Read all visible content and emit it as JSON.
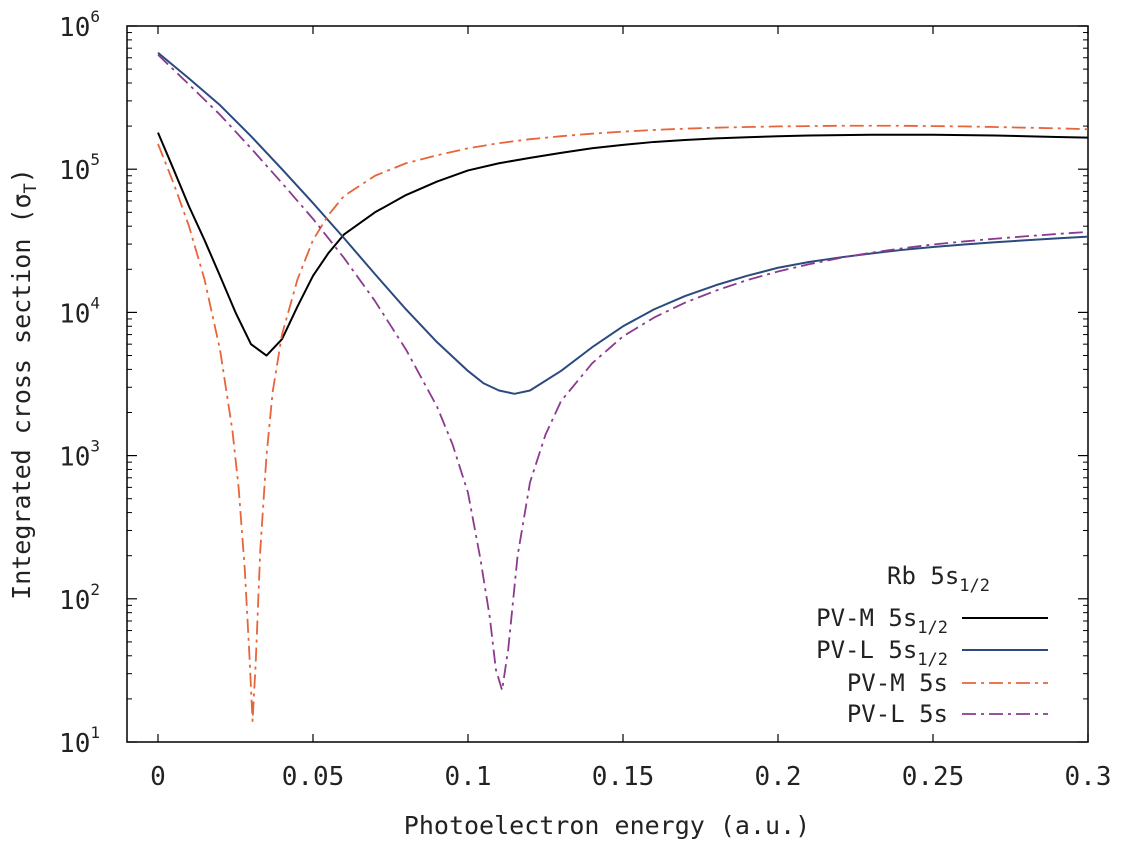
{
  "chart_data": {
    "type": "line",
    "xlabel": "Photoelectron energy (a.u.)",
    "ylabel": "Integrated cross section (σ",
    "ylabel_subscript": "T",
    "ylabel_close": ")",
    "xlim": [
      -0.01,
      0.3
    ],
    "ylim": [
      10,
      1000000
    ],
    "yscale": "log",
    "grid": false,
    "x_ticks": [
      {
        "value": 0,
        "label": "0"
      },
      {
        "value": 0.05,
        "label": "0.05"
      },
      {
        "value": 0.1,
        "label": "0.1"
      },
      {
        "value": 0.15,
        "label": "0.15"
      },
      {
        "value": 0.2,
        "label": "0.2"
      },
      {
        "value": 0.25,
        "label": "0.25"
      },
      {
        "value": 0.3,
        "label": "0.3"
      }
    ],
    "y_ticks": [
      {
        "value": 10,
        "base": "10",
        "exp": "1"
      },
      {
        "value": 100,
        "base": "10",
        "exp": "2"
      },
      {
        "value": 1000,
        "base": "10",
        "exp": "3"
      },
      {
        "value": 10000,
        "base": "10",
        "exp": "4"
      },
      {
        "value": 100000,
        "base": "10",
        "exp": "5"
      },
      {
        "value": 1000000,
        "base": "10",
        "exp": "6"
      }
    ],
    "legend": {
      "placement": "bottom-right",
      "title_main": "Rb 5s",
      "title_sub": "1/2"
    },
    "series": [
      {
        "label_main": "PV-M 5s",
        "label_sub": "1/2",
        "color": "#000000",
        "dash": "solid",
        "x": [
          0,
          0.005,
          0.01,
          0.015,
          0.02,
          0.025,
          0.03,
          0.035,
          0.04,
          0.045,
          0.05,
          0.055,
          0.06,
          0.07,
          0.08,
          0.09,
          0.1,
          0.11,
          0.12,
          0.13,
          0.14,
          0.15,
          0.16,
          0.17,
          0.18,
          0.19,
          0.2,
          0.21,
          0.22,
          0.23,
          0.24,
          0.25,
          0.26,
          0.27,
          0.28,
          0.29,
          0.3
        ],
        "y": [
          180000,
          100000,
          55000,
          32000,
          18000,
          10000,
          6000,
          5000,
          6500,
          11000,
          18000,
          26000,
          35000,
          50000,
          66000,
          82000,
          98000,
          110000,
          120000,
          130000,
          140000,
          148000,
          155000,
          160000,
          164000,
          167000,
          170000,
          172000,
          173000,
          174000,
          174000,
          174000,
          173000,
          172000,
          170000,
          168000,
          166000
        ]
      },
      {
        "label_main": "PV-L 5s",
        "label_sub": "1/2",
        "color": "#2b4a7e",
        "dash": "solid",
        "x": [
          0,
          0.01,
          0.02,
          0.03,
          0.04,
          0.05,
          0.06,
          0.07,
          0.08,
          0.09,
          0.1,
          0.105,
          0.11,
          0.115,
          0.12,
          0.13,
          0.14,
          0.15,
          0.16,
          0.17,
          0.18,
          0.19,
          0.2,
          0.21,
          0.22,
          0.23,
          0.24,
          0.25,
          0.26,
          0.27,
          0.28,
          0.29,
          0.3
        ],
        "y": [
          650000,
          430000,
          280000,
          170000,
          100000,
          58000,
          33000,
          18500,
          10500,
          6200,
          3900,
          3200,
          2850,
          2700,
          2850,
          3900,
          5700,
          8000,
          10500,
          13000,
          15500,
          18000,
          20500,
          22500,
          24200,
          25800,
          27300,
          28600,
          29800,
          30900,
          31900,
          32900,
          33800
        ]
      },
      {
        "label_main": "PV-M 5s",
        "label_sub": "",
        "color": "#e8643a",
        "dash": "dashdot",
        "x": [
          0,
          0.005,
          0.01,
          0.015,
          0.02,
          0.024,
          0.026,
          0.028,
          0.0295,
          0.0305,
          0.0315,
          0.033,
          0.035,
          0.037,
          0.04,
          0.045,
          0.05,
          0.055,
          0.06,
          0.07,
          0.08,
          0.09,
          0.1,
          0.11,
          0.12,
          0.13,
          0.14,
          0.15,
          0.16,
          0.17,
          0.18,
          0.19,
          0.2,
          0.21,
          0.22,
          0.23,
          0.24,
          0.25,
          0.26,
          0.27,
          0.28,
          0.29,
          0.3
        ],
        "y": [
          150000,
          80000,
          40000,
          17000,
          5500,
          1500,
          600,
          160,
          40,
          14,
          35,
          220,
          1000,
          2800,
          7000,
          17000,
          32000,
          48000,
          65000,
          90000,
          110000,
          125000,
          140000,
          152000,
          162000,
          170000,
          177000,
          183000,
          188000,
          192000,
          195000,
          197000,
          199000,
          200000,
          201000,
          201000,
          201000,
          200000,
          199000,
          197000,
          195000,
          193000,
          190000
        ]
      },
      {
        "label_main": "PV-L 5s",
        "label_sub": "",
        "color": "#8b3a8f",
        "dash": "dashdot",
        "x": [
          0,
          0.01,
          0.02,
          0.03,
          0.04,
          0.05,
          0.06,
          0.07,
          0.08,
          0.09,
          0.095,
          0.1,
          0.104,
          0.107,
          0.109,
          0.111,
          0.113,
          0.116,
          0.12,
          0.125,
          0.13,
          0.14,
          0.15,
          0.16,
          0.17,
          0.18,
          0.19,
          0.2,
          0.21,
          0.22,
          0.23,
          0.24,
          0.25,
          0.26,
          0.27,
          0.28,
          0.29,
          0.3
        ],
        "y": [
          630000,
          390000,
          240000,
          140000,
          80000,
          45000,
          24000,
          12000,
          5500,
          2200,
          1200,
          550,
          190,
          75,
          32,
          23,
          45,
          200,
          650,
          1400,
          2400,
          4400,
          6800,
          9200,
          11700,
          14200,
          16800,
          19300,
          21700,
          24000,
          26100,
          28000,
          29800,
          31300,
          32700,
          34000,
          35300,
          36500
        ]
      }
    ]
  }
}
